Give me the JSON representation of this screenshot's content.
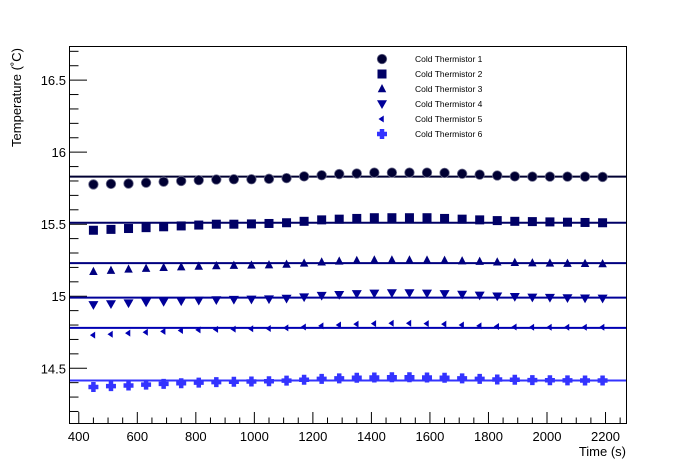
{
  "chart_data": {
    "type": "scatter",
    "xlabel": "Time (s)",
    "ylabel": "Temperature (˚C)",
    "xlim": [
      370,
      2270
    ],
    "ylim": [
      14.12,
      16.73
    ],
    "x_ticks": [
      400,
      600,
      800,
      1000,
      1200,
      1400,
      1600,
      1800,
      2000,
      2200
    ],
    "x_tick_labels": [
      "400",
      "600",
      "800",
      "1000",
      "1200",
      "1400",
      "1600",
      "1800",
      "2000",
      "2200"
    ],
    "y_ticks": [
      14.5,
      15,
      15.5,
      16,
      16.5
    ],
    "y_tick_labels": [
      "14.5",
      "15",
      "15.5",
      "16",
      "16.5"
    ],
    "grid": false,
    "legend_position": "top-right",
    "x": [
      450,
      510,
      570,
      630,
      690,
      750,
      810,
      870,
      930,
      990,
      1050,
      1110,
      1170,
      1230,
      1290,
      1350,
      1410,
      1470,
      1530,
      1590,
      1650,
      1710,
      1770,
      1830,
      1890,
      1950,
      2010,
      2070,
      2130,
      2190
    ],
    "series": [
      {
        "name": "Cold Thermistor 1",
        "marker": "circle",
        "color": "#000033",
        "fit": 15.83,
        "values": [
          15.776,
          15.78,
          15.782,
          15.788,
          15.795,
          15.8,
          15.806,
          15.81,
          15.812,
          15.812,
          15.815,
          15.82,
          15.832,
          15.84,
          15.848,
          15.852,
          15.858,
          15.858,
          15.858,
          15.858,
          15.856,
          15.85,
          15.844,
          15.838,
          15.832,
          15.83,
          15.83,
          15.83,
          15.83,
          15.828
        ]
      },
      {
        "name": "Cold Thermistor 2",
        "marker": "square",
        "color": "#000066",
        "fit": 15.51,
        "values": [
          15.458,
          15.464,
          15.47,
          15.476,
          15.482,
          15.488,
          15.494,
          15.5,
          15.5,
          15.502,
          15.505,
          15.51,
          15.52,
          15.53,
          15.535,
          15.54,
          15.545,
          15.545,
          15.545,
          15.545,
          15.54,
          15.535,
          15.53,
          15.525,
          15.52,
          15.518,
          15.516,
          15.514,
          15.512,
          15.51
        ]
      },
      {
        "name": "Cold Thermistor 3",
        "marker": "triangle-up",
        "color": "#000080",
        "fit": 15.23,
        "values": [
          15.17,
          15.178,
          15.186,
          15.192,
          15.198,
          15.202,
          15.206,
          15.21,
          15.212,
          15.214,
          15.216,
          15.22,
          15.228,
          15.236,
          15.242,
          15.246,
          15.25,
          15.25,
          15.25,
          15.249,
          15.247,
          15.244,
          15.24,
          15.236,
          15.232,
          15.23,
          15.228,
          15.226,
          15.225,
          15.224
        ]
      },
      {
        "name": "Cold Thermistor 4",
        "marker": "triangle-down",
        "color": "#000099",
        "fit": 14.99,
        "values": [
          14.94,
          14.946,
          14.952,
          14.958,
          14.962,
          14.966,
          14.97,
          14.974,
          14.976,
          14.978,
          14.98,
          14.984,
          14.994,
          15.004,
          15.01,
          15.016,
          15.02,
          15.022,
          15.022,
          15.02,
          15.016,
          15.012,
          15.006,
          15.0,
          14.996,
          14.992,
          14.99,
          14.988,
          14.986,
          14.985
        ]
      },
      {
        "name": "Cold Thermistor 5",
        "marker": "triangle-left",
        "color": "#0000b3",
        "fit": 14.78,
        "values": [
          14.73,
          14.736,
          14.744,
          14.75,
          14.756,
          14.762,
          14.766,
          14.77,
          14.772,
          14.774,
          14.776,
          14.78,
          14.786,
          14.794,
          14.8,
          14.806,
          14.81,
          14.812,
          14.812,
          14.81,
          14.806,
          14.8,
          14.794,
          14.79,
          14.786,
          14.785,
          14.785,
          14.785,
          14.785,
          14.785
        ]
      },
      {
        "name": "Cold Thermistor 6",
        "marker": "cross",
        "color": "#3333ff",
        "fit": 14.415,
        "values": [
          14.37,
          14.376,
          14.38,
          14.386,
          14.392,
          14.396,
          14.4,
          14.404,
          14.406,
          14.408,
          14.41,
          14.414,
          14.42,
          14.426,
          14.43,
          14.434,
          14.436,
          14.438,
          14.438,
          14.436,
          14.434,
          14.43,
          14.426,
          14.422,
          14.42,
          14.418,
          14.417,
          14.416,
          14.415,
          14.415
        ]
      }
    ]
  }
}
